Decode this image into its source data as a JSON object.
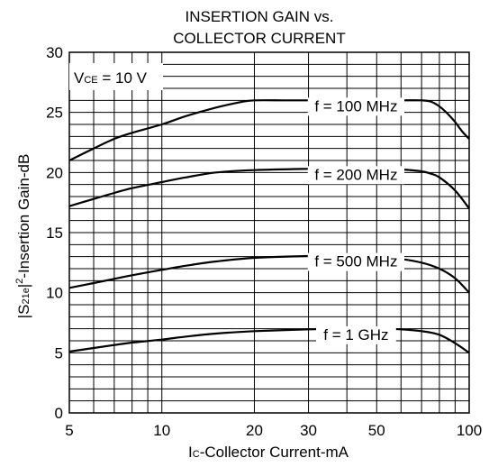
{
  "chart_data": {
    "type": "line",
    "title_line1": "INSERTION GAIN vs.",
    "title_line2": "COLLECTOR CURRENT",
    "xlabel": {
      "prefix": "I",
      "sub": "C",
      "text": "-Collector Current-mA"
    },
    "ylabel": {
      "pre": "|S",
      "sub": "21e",
      "mid": "|",
      "sup": "2",
      "text": "-Insertion Gain-dB"
    },
    "x_scale": "log",
    "xlim": [
      5,
      100
    ],
    "ylim": [
      0,
      30
    ],
    "x_ticks": [
      5,
      10,
      20,
      30,
      50,
      100
    ],
    "x_tick_labels": [
      "5",
      "10",
      "20",
      "30",
      "50",
      "100"
    ],
    "y_ticks": [
      0,
      5,
      10,
      15,
      20,
      25,
      30
    ],
    "y_tick_labels": [
      "0",
      "5",
      "10",
      "15",
      "20",
      "25",
      "30"
    ],
    "grid": true,
    "grid_x_minor": [
      6,
      7,
      8,
      9,
      10,
      20,
      30,
      40,
      50,
      60,
      70,
      80,
      90
    ],
    "grid_y_step": 1,
    "condition": {
      "prefix": "V",
      "sub": "CE",
      "text": " = 10 V"
    },
    "series": [
      {
        "name": "f = 100 MHz",
        "label_x": 35,
        "x": [
          5,
          6,
          7,
          8,
          10,
          12,
          15,
          18,
          20,
          25,
          30,
          40,
          50,
          60,
          70,
          75,
          80,
          85,
          90,
          95,
          100
        ],
        "y": [
          21.0,
          22.0,
          22.8,
          23.3,
          24.0,
          24.7,
          25.4,
          25.85,
          26.0,
          26.0,
          26.0,
          26.0,
          26.0,
          26.0,
          26.0,
          25.9,
          25.5,
          24.9,
          24.2,
          23.4,
          22.8
        ]
      },
      {
        "name": "f = 200 MHz",
        "label_x": 35,
        "x": [
          5,
          6,
          7,
          8,
          10,
          12,
          15,
          20,
          30,
          40,
          50,
          60,
          70,
          75,
          80,
          90,
          100
        ],
        "y": [
          17.2,
          17.8,
          18.3,
          18.7,
          19.2,
          19.6,
          20.0,
          20.2,
          20.3,
          20.3,
          20.3,
          20.25,
          20.1,
          19.9,
          19.6,
          18.5,
          17.0
        ]
      },
      {
        "name": "f = 500 MHz",
        "label_x": 35,
        "x": [
          5,
          6,
          7,
          8,
          10,
          12,
          15,
          20,
          30,
          40,
          50,
          60,
          70,
          80,
          90,
          100
        ],
        "y": [
          10.4,
          10.8,
          11.15,
          11.45,
          11.9,
          12.25,
          12.6,
          12.9,
          13.05,
          13.1,
          13.0,
          12.8,
          12.5,
          12.0,
          11.2,
          10.0
        ]
      },
      {
        "name": "f = 1 GHz",
        "label_x": 35,
        "x": [
          5,
          6,
          7,
          8,
          10,
          12,
          15,
          20,
          30,
          40,
          50,
          60,
          70,
          80,
          90,
          100
        ],
        "y": [
          5.1,
          5.4,
          5.65,
          5.85,
          6.1,
          6.35,
          6.6,
          6.8,
          6.95,
          7.0,
          7.0,
          6.95,
          6.8,
          6.5,
          5.8,
          5.0
        ]
      }
    ]
  }
}
